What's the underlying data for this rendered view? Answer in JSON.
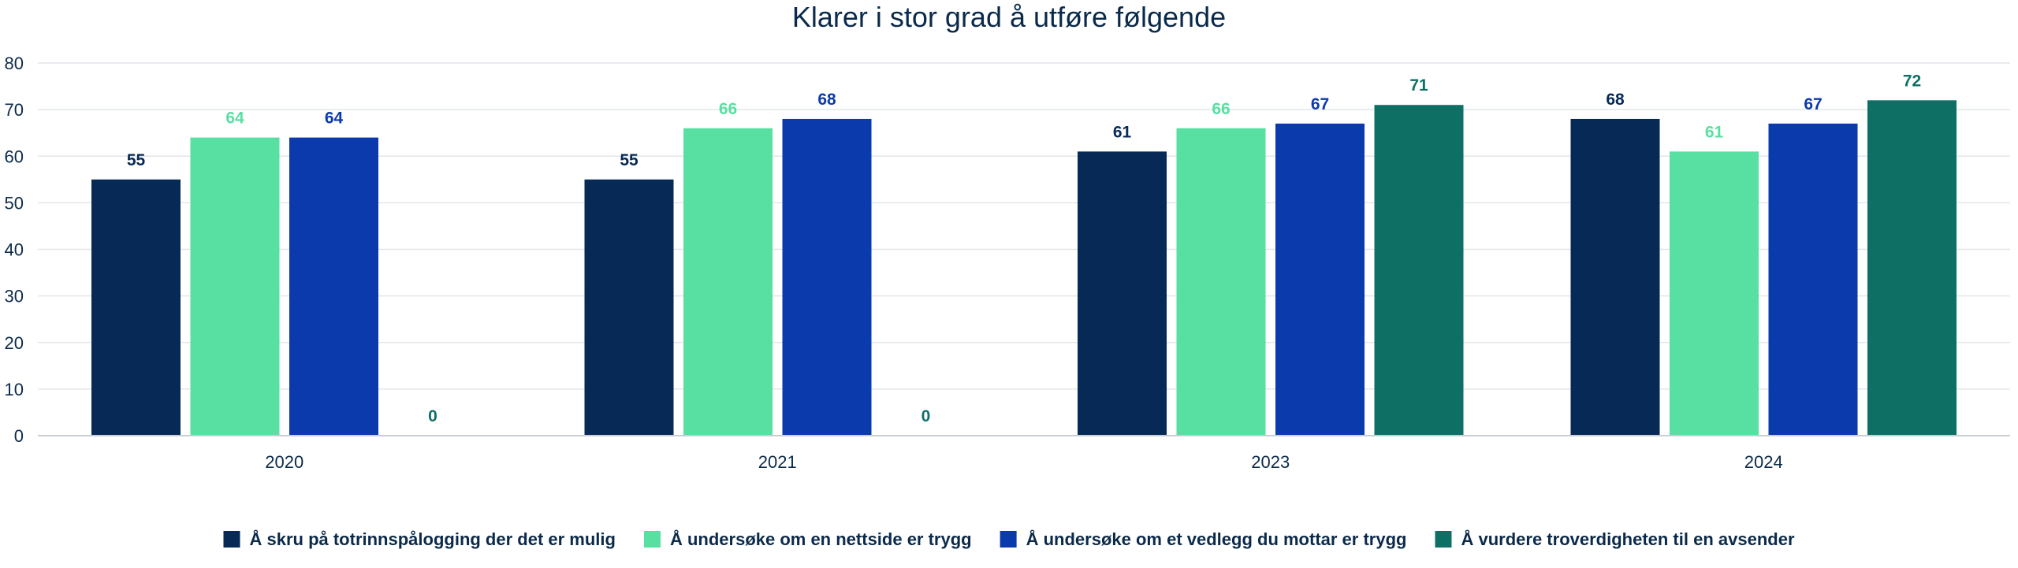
{
  "chart_data": {
    "type": "bar",
    "title": "Klarer i stor grad å utføre følgende",
    "xlabel": "",
    "ylabel": "",
    "ylim": [
      0,
      80
    ],
    "yticks": [
      0,
      10,
      20,
      30,
      40,
      50,
      60,
      70,
      80
    ],
    "categories": [
      "2020",
      "2021",
      "2023",
      "2024"
    ],
    "grid": true,
    "legend_position": "bottom",
    "series": [
      {
        "name": "Å skru på totrinnspålogging der det er mulig",
        "color": "#062a55",
        "label_color": "#062a55",
        "values": [
          55,
          55,
          61,
          68
        ]
      },
      {
        "name": "Å undersøke om en nettside er trygg",
        "color": "#58dfa2",
        "label_color": "#58dfa2",
        "values": [
          64,
          66,
          66,
          61
        ]
      },
      {
        "name": "Å undersøke om et vedlegg du mottar er trygg",
        "color": "#0b3aac",
        "label_color": "#0b3aac",
        "values": [
          64,
          68,
          67,
          67
        ]
      },
      {
        "name": "Å vurdere troverdigheten til en avsender",
        "color": "#0e7065",
        "label_color": "#0e7065",
        "values": [
          0,
          0,
          71,
          72
        ]
      }
    ]
  }
}
